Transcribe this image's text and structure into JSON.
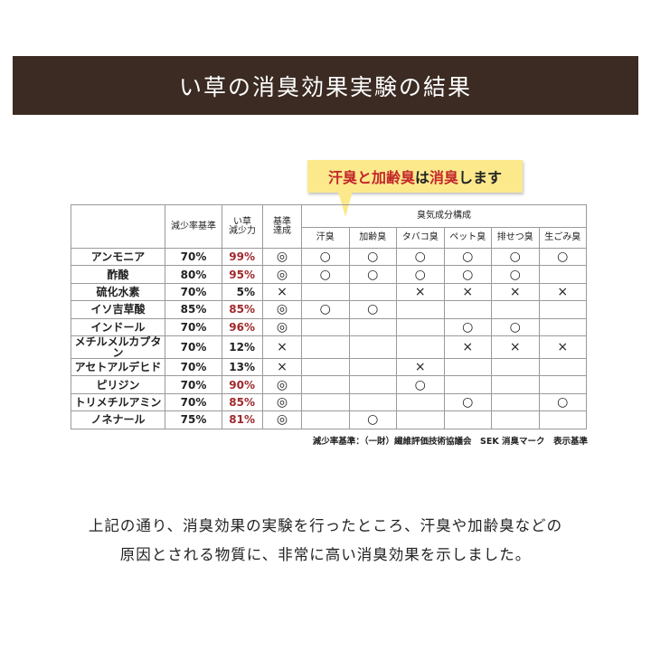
{
  "title": "い草の消臭効果実験の結果",
  "callout": {
    "part1": "汗臭と加齢臭",
    "part2": "は",
    "part3": "消臭",
    "part4": "します"
  },
  "table": {
    "headers": {
      "standard": "減少率基準",
      "igusa_line1": "い草",
      "igusa_line2": "減少力",
      "achieved_line1": "基準",
      "achieved_line2": "達成",
      "group": "臭気成分構成"
    },
    "odors": [
      "汗臭",
      "加齢臭",
      "タバコ臭",
      "ペット臭",
      "排せつ臭",
      "生ごみ臭"
    ],
    "rows": [
      {
        "name": "アンモニア",
        "standard": "70%",
        "igusa": "99%",
        "achieved": "◎",
        "cells": [
          "○",
          "○",
          "○",
          "○",
          "○",
          "○"
        ]
      },
      {
        "name": "酢酸",
        "standard": "80%",
        "igusa": "95%",
        "achieved": "◎",
        "cells": [
          "○",
          "○",
          "○",
          "○",
          "○",
          ""
        ]
      },
      {
        "name": "硫化水素",
        "standard": "70%",
        "igusa": "5%",
        "achieved": "×",
        "cells": [
          "",
          "",
          "×",
          "×",
          "×",
          "×"
        ]
      },
      {
        "name": "イソ吉草酸",
        "standard": "85%",
        "igusa": "85%",
        "achieved": "◎",
        "cells": [
          "○",
          "○",
          "",
          "",
          "",
          ""
        ]
      },
      {
        "name": "インドール",
        "standard": "70%",
        "igusa": "96%",
        "achieved": "◎",
        "cells": [
          "",
          "",
          "",
          "○",
          "○",
          ""
        ]
      },
      {
        "name": "メチルメルカプタン",
        "standard": "70%",
        "igusa": "12%",
        "achieved": "×",
        "cells": [
          "",
          "",
          "",
          "×",
          "×",
          "×"
        ]
      },
      {
        "name": "アセトアルデヒド",
        "standard": "70%",
        "igusa": "13%",
        "achieved": "×",
        "cells": [
          "",
          "",
          "×",
          "",
          "",
          ""
        ]
      },
      {
        "name": "ピリジン",
        "standard": "70%",
        "igusa": "90%",
        "achieved": "◎",
        "cells": [
          "",
          "",
          "○",
          "",
          "",
          ""
        ]
      },
      {
        "name": "トリメチルアミン",
        "standard": "70%",
        "igusa": "85%",
        "achieved": "◎",
        "cells": [
          "",
          "",
          "",
          "○",
          "",
          "○"
        ]
      },
      {
        "name": "ノネナール",
        "standard": "75%",
        "igusa": "81%",
        "achieved": "◎",
        "cells": [
          "",
          "○",
          "",
          "",
          "",
          ""
        ]
      }
    ]
  },
  "note": "減少率基準：（一財）繊維評価技術協議会　SEK 消臭マーク　表示基準",
  "body": {
    "line1": "上記の通り、消臭効果の実験を行ったところ、汗臭や加齢臭などの",
    "line2": "原因とされる物質に、非常に高い消臭効果を示しました。"
  },
  "colors": {
    "banner": "#3b2b23",
    "callout": "#fbe98c",
    "highlight_red": "#a0282c"
  }
}
